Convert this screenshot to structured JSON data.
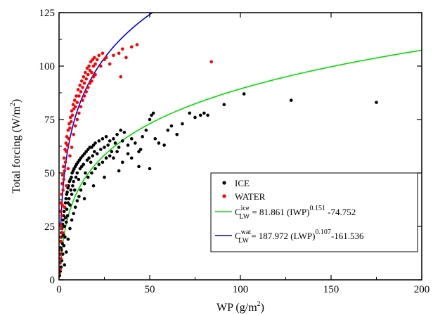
{
  "chart_data": {
    "type": "scatter",
    "xlabel": "WP (g/m",
    "xlabel_sup": "2",
    "xlabel_end": ")",
    "ylabel": "Total forcing (W/m",
    "ylabel_sup": "2",
    "ylabel_end": ")",
    "xlim": [
      0,
      200
    ],
    "ylim": [
      0,
      125
    ],
    "xticks": [
      "0",
      "50",
      "100",
      "150",
      "200"
    ],
    "xtick_values": [
      0,
      50,
      100,
      150,
      200
    ],
    "yticks": [
      "0",
      "25",
      "50",
      "75",
      "100",
      "125"
    ],
    "ytick_values": [
      0,
      25,
      50,
      75,
      100,
      125
    ],
    "grid": false,
    "legend_position": "bottom-right",
    "legend": [
      {
        "kind": "point",
        "color": "#000000",
        "label": "ICE"
      },
      {
        "kind": "point",
        "color": "#ff0000",
        "label": "WATER"
      },
      {
        "kind": "line",
        "color": "#00dd00",
        "pre": "C",
        "sup": "ice",
        "sub": "LW",
        "mid": " = 81.861 (IWP)",
        "sup2": "0.151",
        "post": " -74.752"
      },
      {
        "kind": "line",
        "color": "#0000dd",
        "pre": "C",
        "sup": "wat",
        "sub": "LW",
        "mid": " = 187.972 (LWP)",
        "sup2": "0.107",
        "post": "-161.536"
      }
    ],
    "series": [
      {
        "name": "ICE",
        "color": "#000000",
        "points": [
          [
            0.3,
            2
          ],
          [
            0.4,
            5
          ],
          [
            0.5,
            8
          ],
          [
            0.6,
            12
          ],
          [
            0.7,
            4
          ],
          [
            0.8,
            15
          ],
          [
            0.9,
            10
          ],
          [
            1.0,
            18
          ],
          [
            1.1,
            6
          ],
          [
            1.2,
            20
          ],
          [
            1.3,
            14
          ],
          [
            1.4,
            22
          ],
          [
            1.5,
            9
          ],
          [
            1.6,
            24
          ],
          [
            1.8,
            17
          ],
          [
            2.0,
            26
          ],
          [
            2.1,
            12
          ],
          [
            2.2,
            28
          ],
          [
            2.4,
            21
          ],
          [
            2.5,
            30
          ],
          [
            2.7,
            16
          ],
          [
            2.8,
            32
          ],
          [
            3.0,
            25
          ],
          [
            3.1,
            34
          ],
          [
            3.3,
            20
          ],
          [
            3.5,
            36
          ],
          [
            3.6,
            29
          ],
          [
            3.8,
            38
          ],
          [
            4.0,
            27
          ],
          [
            4.2,
            40
          ],
          [
            4.3,
            33
          ],
          [
            4.5,
            41
          ],
          [
            4.7,
            30
          ],
          [
            4.9,
            43
          ],
          [
            5.0,
            36
          ],
          [
            5.2,
            44
          ],
          [
            5.5,
            38
          ],
          [
            5.7,
            46
          ],
          [
            6.0,
            35
          ],
          [
            6.2,
            47
          ],
          [
            6.5,
            42
          ],
          [
            6.8,
            48
          ],
          [
            7.0,
            40
          ],
          [
            7.2,
            50
          ],
          [
            7.5,
            44
          ],
          [
            7.8,
            51
          ],
          [
            8.0,
            46
          ],
          [
            8.3,
            52
          ],
          [
            8.6,
            42
          ],
          [
            9.0,
            53
          ],
          [
            9.3,
            48
          ],
          [
            9.6,
            54
          ],
          [
            10.0,
            50
          ],
          [
            10.4,
            55
          ],
          [
            10.8,
            47
          ],
          [
            11.2,
            56
          ],
          [
            11.6,
            52
          ],
          [
            12.0,
            57
          ],
          [
            12.5,
            53
          ],
          [
            13.0,
            58
          ],
          [
            13.5,
            54
          ],
          [
            14.0,
            59
          ],
          [
            14.5,
            50
          ],
          [
            15.0,
            60
          ],
          [
            15.5,
            56
          ],
          [
            16.0,
            61
          ],
          [
            16.5,
            57
          ],
          [
            17.0,
            62
          ],
          [
            17.5,
            55
          ],
          [
            18.0,
            62
          ],
          [
            18.5,
            58
          ],
          [
            19.0,
            63
          ],
          [
            19.5,
            60
          ],
          [
            20.0,
            64
          ],
          [
            21.0,
            59
          ],
          [
            22.0,
            65
          ],
          [
            23.0,
            61
          ],
          [
            24.0,
            66
          ],
          [
            25.0,
            62
          ],
          [
            26.0,
            67
          ],
          [
            27.0,
            63
          ],
          [
            28.0,
            65
          ],
          [
            29.0,
            60
          ],
          [
            30.0,
            66
          ],
          [
            31.0,
            64
          ],
          [
            32.0,
            68
          ],
          [
            33.0,
            62
          ],
          [
            34.0,
            70
          ],
          [
            35.0,
            65
          ],
          [
            36.0,
            69
          ],
          [
            38.0,
            63
          ],
          [
            40.0,
            66
          ],
          [
            42.0,
            64
          ],
          [
            44.0,
            60
          ],
          [
            46.0,
            67
          ],
          [
            48.0,
            70
          ],
          [
            50.0,
            75
          ],
          [
            51.0,
            77
          ],
          [
            52.0,
            78
          ],
          [
            53.0,
            66
          ],
          [
            55.0,
            64
          ],
          [
            58.0,
            63
          ],
          [
            60.0,
            70
          ],
          [
            62.0,
            72
          ],
          [
            65.0,
            68
          ],
          [
            68.0,
            73
          ],
          [
            72.0,
            78
          ],
          [
            75.0,
            76
          ],
          [
            78.0,
            77
          ],
          [
            80.0,
            78
          ],
          [
            82.0,
            77
          ],
          [
            91.0,
            82
          ],
          [
            102.0,
            87
          ],
          [
            128.0,
            84
          ],
          [
            175.0,
            83
          ],
          [
            3.0,
            7
          ],
          [
            4.0,
            13
          ],
          [
            5.0,
            19
          ],
          [
            6.0,
            24
          ],
          [
            7.0,
            28
          ],
          [
            8.0,
            31
          ],
          [
            9.0,
            34
          ],
          [
            10.0,
            37
          ],
          [
            11.0,
            39
          ],
          [
            12.0,
            42
          ],
          [
            14.0,
            45
          ],
          [
            16.0,
            48
          ],
          [
            18.0,
            50
          ],
          [
            20.0,
            52
          ],
          [
            22.0,
            54
          ],
          [
            24.0,
            55
          ],
          [
            26.0,
            57
          ],
          [
            28.0,
            58
          ],
          [
            30.0,
            57
          ],
          [
            32.0,
            60
          ],
          [
            35.0,
            55
          ],
          [
            38.0,
            59
          ],
          [
            40.0,
            57
          ],
          [
            45.0,
            61
          ],
          [
            50.0,
            52
          ],
          [
            44.0,
            53
          ],
          [
            33.0,
            51
          ],
          [
            25.0,
            48
          ],
          [
            19.0,
            44
          ],
          [
            14.0,
            38
          ]
        ]
      },
      {
        "name": "WATER",
        "color": "#ff0000",
        "points": [
          [
            0.2,
            3
          ],
          [
            0.3,
            8
          ],
          [
            0.4,
            14
          ],
          [
            0.5,
            20
          ],
          [
            0.6,
            5
          ],
          [
            0.7,
            26
          ],
          [
            0.8,
            12
          ],
          [
            0.9,
            32
          ],
          [
            1.0,
            18
          ],
          [
            1.1,
            36
          ],
          [
            1.2,
            24
          ],
          [
            1.4,
            40
          ],
          [
            1.5,
            30
          ],
          [
            1.7,
            45
          ],
          [
            1.8,
            35
          ],
          [
            2.0,
            49
          ],
          [
            2.2,
            42
          ],
          [
            2.4,
            53
          ],
          [
            2.6,
            47
          ],
          [
            2.8,
            57
          ],
          [
            3.0,
            51
          ],
          [
            3.3,
            61
          ],
          [
            3.5,
            55
          ],
          [
            3.8,
            64
          ],
          [
            4.0,
            60
          ],
          [
            4.3,
            67
          ],
          [
            4.6,
            63
          ],
          [
            5.0,
            70
          ],
          [
            5.3,
            66
          ],
          [
            5.6,
            73
          ],
          [
            6.0,
            71
          ],
          [
            6.3,
            76
          ],
          [
            6.7,
            74
          ],
          [
            7.0,
            79
          ],
          [
            7.4,
            77
          ],
          [
            7.8,
            82
          ],
          [
            8.2,
            80
          ],
          [
            8.6,
            84
          ],
          [
            9.0,
            81
          ],
          [
            9.5,
            86
          ],
          [
            10.0,
            83
          ],
          [
            10.5,
            89
          ],
          [
            11.0,
            86
          ],
          [
            11.5,
            91
          ],
          [
            12.0,
            88
          ],
          [
            12.5,
            93
          ],
          [
            13.0,
            90
          ],
          [
            13.5,
            95
          ],
          [
            14.0,
            92
          ],
          [
            14.5,
            97
          ],
          [
            15.0,
            94
          ],
          [
            15.5,
            99
          ],
          [
            16.0,
            96
          ],
          [
            16.5,
            100
          ],
          [
            17.0,
            98
          ],
          [
            17.5,
            102
          ],
          [
            18.0,
            97
          ],
          [
            18.5,
            103
          ],
          [
            19.0,
            100
          ],
          [
            19.5,
            104
          ],
          [
            20.0,
            101
          ],
          [
            21.0,
            103
          ],
          [
            22.0,
            105
          ],
          [
            23.0,
            100
          ],
          [
            24.0,
            106
          ],
          [
            25.0,
            103
          ],
          [
            26.0,
            104
          ],
          [
            28.0,
            101
          ],
          [
            30.0,
            105
          ],
          [
            33.0,
            106
          ],
          [
            34.0,
            95
          ],
          [
            35.0,
            108
          ],
          [
            37.0,
            104
          ],
          [
            40.0,
            109
          ],
          [
            43.0,
            110
          ],
          [
            84.0,
            102
          ],
          [
            1.0,
            10
          ],
          [
            2.0,
            22
          ],
          [
            3.0,
            34
          ],
          [
            4.0,
            44
          ],
          [
            5.0,
            52
          ],
          [
            6.0,
            58
          ],
          [
            7.0,
            62
          ],
          [
            8.0,
            68
          ],
          [
            9.0,
            72
          ],
          [
            10.0,
            75
          ],
          [
            11.0,
            78
          ],
          [
            12.0,
            81
          ],
          [
            13.0,
            84
          ],
          [
            14.0,
            86
          ],
          [
            15.0,
            88
          ],
          [
            16.0,
            90
          ],
          [
            17.0,
            92
          ],
          [
            18.0,
            93
          ],
          [
            19.0,
            95
          ],
          [
            20.0,
            96
          ]
        ]
      }
    ],
    "curves": [
      {
        "name": "ice-fit",
        "color": "#00dd00",
        "a": 81.861,
        "b": 0.151,
        "c": -74.752,
        "x_range": [
          1.0,
          200
        ]
      },
      {
        "name": "water-fit",
        "color": "#0000dd",
        "a": 187.972,
        "b": 0.107,
        "c": -161.536,
        "x_range": [
          1.0,
          52
        ]
      }
    ]
  }
}
